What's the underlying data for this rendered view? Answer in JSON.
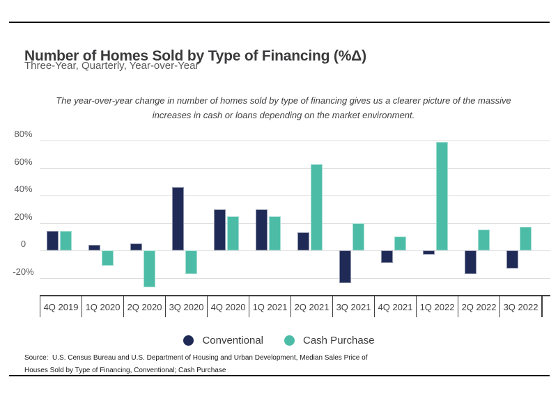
{
  "page": {
    "title": "Number of Homes Sold by Type of Financing (%Δ)",
    "subtitle": "Three-Year, Quarterly, Year-over-Year",
    "note_line1": "The year-over-year change in number of homes sold by type of financing gives us a clearer picture of the massive",
    "note_line2": "increases in cash or loans depending on the market environment.",
    "source_line1": "Source:  U.S. Census Bureau and U.S. Department of Housing and Urban Development, Median Sales Price of",
    "source_line2": "Houses Sold by Type of Financing, Conventional; Cash Purchase"
  },
  "colors": {
    "conventional": "#1f2a56",
    "cash_purchase": "#4cbca7",
    "gridline": "#dbdbdb",
    "axis": "#3f3f3f",
    "rule": "#111111"
  },
  "chart_data": {
    "type": "bar",
    "title": "Number of Homes Sold by Type of Financing (%Δ)",
    "subtitle": "Three-Year, Quarterly, Year-over-Year",
    "categories": [
      "4Q 2019",
      "1Q 2020",
      "2Q 2020",
      "3Q 2020",
      "4Q 2020",
      "1Q 2021",
      "2Q 2021",
      "3Q 2021",
      "4Q 2021",
      "1Q 2022",
      "2Q 2022",
      "3Q 2022"
    ],
    "series": [
      {
        "name": "Conventional",
        "color": "#1f2a56",
        "values": [
          14,
          4,
          5,
          46,
          30,
          30,
          13,
          -24,
          -9,
          -3,
          -17,
          -13
        ]
      },
      {
        "name": "Cash Purchase",
        "color": "#4cbca7",
        "values": [
          14,
          -11,
          -27,
          -17,
          25,
          25,
          63,
          20,
          10,
          79,
          15,
          17
        ]
      }
    ],
    "yticks": [
      {
        "value": 80,
        "label": "80%"
      },
      {
        "value": 60,
        "label": "60%"
      },
      {
        "value": 40,
        "label": "40%"
      },
      {
        "value": 20,
        "label": "20%"
      },
      {
        "value": 0,
        "label": "0"
      },
      {
        "value": -20,
        "label": "-20%"
      }
    ],
    "ylabel": "",
    "xlabel": "",
    "ylim": [
      -30,
      85
    ],
    "grid": true,
    "legend_position": "bottom"
  }
}
